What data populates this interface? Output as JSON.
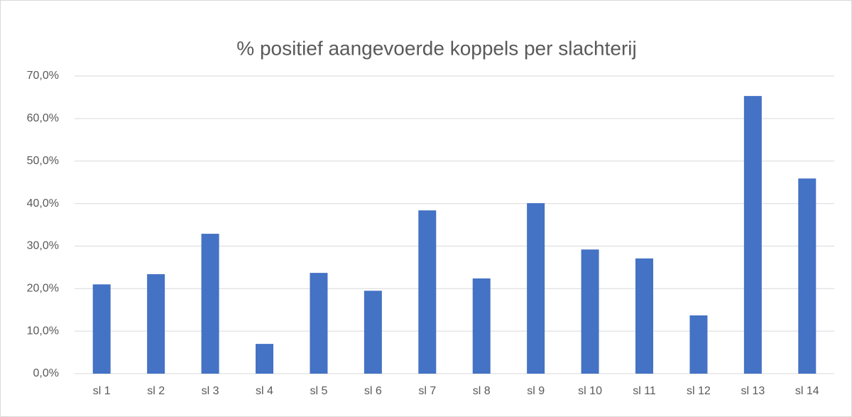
{
  "chart_data": {
    "type": "bar",
    "title": "% positief aangevoerde koppels per slachterij",
    "categories": [
      "sl 1",
      "sl 2",
      "sl 3",
      "sl 4",
      "sl 5",
      "sl 6",
      "sl 7",
      "sl 8",
      "sl 9",
      "sl 10",
      "sl 11",
      "sl 12",
      "sl 13",
      "sl 14"
    ],
    "values": [
      21.0,
      23.4,
      32.9,
      7.0,
      23.7,
      19.5,
      38.4,
      22.4,
      40.1,
      29.2,
      27.1,
      13.7,
      65.3,
      45.9
    ],
    "color": "#4472c4",
    "ylim": [
      0,
      70
    ],
    "yticks": [
      {
        "value": 0,
        "label": "0,0%"
      },
      {
        "value": 10,
        "label": "10,0%"
      },
      {
        "value": 20,
        "label": "20,0%"
      },
      {
        "value": 30,
        "label": "30,0%"
      },
      {
        "value": 40,
        "label": "40,0%"
      },
      {
        "value": 50,
        "label": "50,0%"
      },
      {
        "value": 60,
        "label": "60,0%"
      },
      {
        "value": 70,
        "label": "70,0%"
      }
    ],
    "grid": true
  }
}
